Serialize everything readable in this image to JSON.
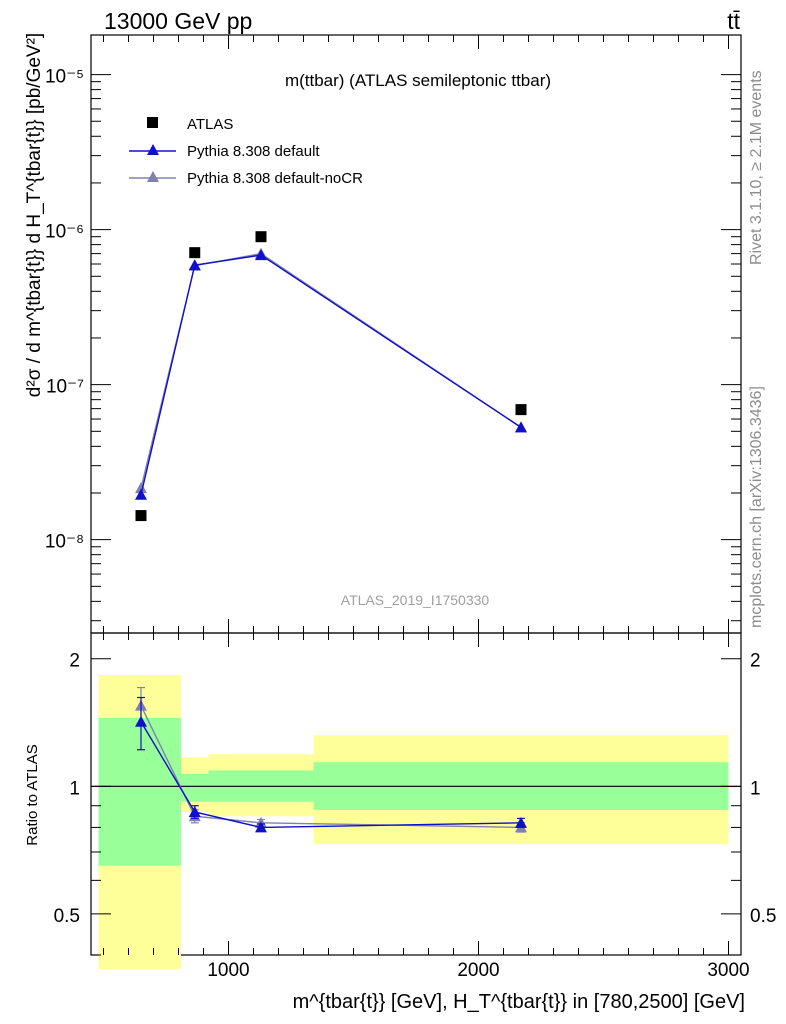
{
  "header": {
    "left": "13000 GeV pp",
    "right": "tt̄"
  },
  "side": {
    "rivet": "Rivet 3.1.10, ≥ 2.1M events",
    "mcplots": "mcplots.cern.ch [arXiv:1306.3436]"
  },
  "top_panel": {
    "title": "m(ttbar) (ATLAS semileptonic ttbar)",
    "analysis": "ATLAS_2019_I1750330",
    "ylabel": "d²σ / d m^{tbar{t}} d H_T^{tbar{t}} [pb/GeV²]",
    "yticks": [
      "10⁻⁸",
      "10⁻⁷",
      "10⁻⁶",
      "10⁻⁵"
    ]
  },
  "bottom_panel": {
    "ylabel": "Ratio to ATLAS",
    "yticks": [
      "0.5",
      "1",
      "2"
    ]
  },
  "xaxis": {
    "label": "m^{tbar{t}} [GeV], H_T^{tbar{t}} in [780,2500] [GeV]",
    "ticks": [
      "1000",
      "2000",
      "3000"
    ]
  },
  "legend": [
    "ATLAS",
    "Pythia 8.308 default",
    "Pythia 8.308 default-noCR"
  ],
  "colors": {
    "data": "#000000",
    "default": "#1010c8",
    "noCR": "#8080b0",
    "band_inner": "#99ff99",
    "band_outer": "#ffff99"
  },
  "chart_data": {
    "type": "scatter",
    "x_scale": "linear",
    "y_scale": "log",
    "xlim": [
      450,
      3050
    ],
    "ylim": [
      2.5e-09,
      1.8e-05
    ],
    "ratio_ylim": [
      0.4,
      2.3
    ],
    "bins": [
      {
        "lo": 480,
        "hi": 810
      },
      {
        "lo": 810,
        "hi": 920
      },
      {
        "lo": 920,
        "hi": 1340
      },
      {
        "lo": 1340,
        "hi": 3000
      }
    ],
    "x": [
      650,
      865,
      1130,
      2170
    ],
    "series": [
      {
        "name": "ATLAS",
        "values": [
          1.43e-08,
          7.1e-07,
          9e-07,
          6.9e-08
        ]
      },
      {
        "name": "Pythia 8.308 default",
        "values": [
          1.95e-08,
          5.9e-07,
          6.85e-07,
          5.3e-08
        ],
        "ratio": [
          1.42,
          0.87,
          0.8,
          0.82
        ],
        "ratio_err": [
          0.2,
          0.03,
          0.015,
          0.02
        ]
      },
      {
        "name": "Pythia 8.308 default-noCR",
        "values": [
          2.15e-08,
          5.85e-07,
          7e-07,
          5.3e-08
        ],
        "ratio": [
          1.55,
          0.85,
          0.82,
          0.8
        ],
        "ratio_err": [
          0.16,
          0.03,
          0.015,
          0.02
        ]
      }
    ],
    "band_inner": [
      [
        0.65,
        1.45
      ],
      [
        0.92,
        1.07
      ],
      [
        0.92,
        1.09
      ],
      [
        0.88,
        1.14
      ]
    ],
    "band_outer": [
      [
        0.37,
        1.83
      ],
      [
        0.87,
        1.17
      ],
      [
        0.85,
        1.19
      ],
      [
        0.73,
        1.32
      ]
    ]
  }
}
